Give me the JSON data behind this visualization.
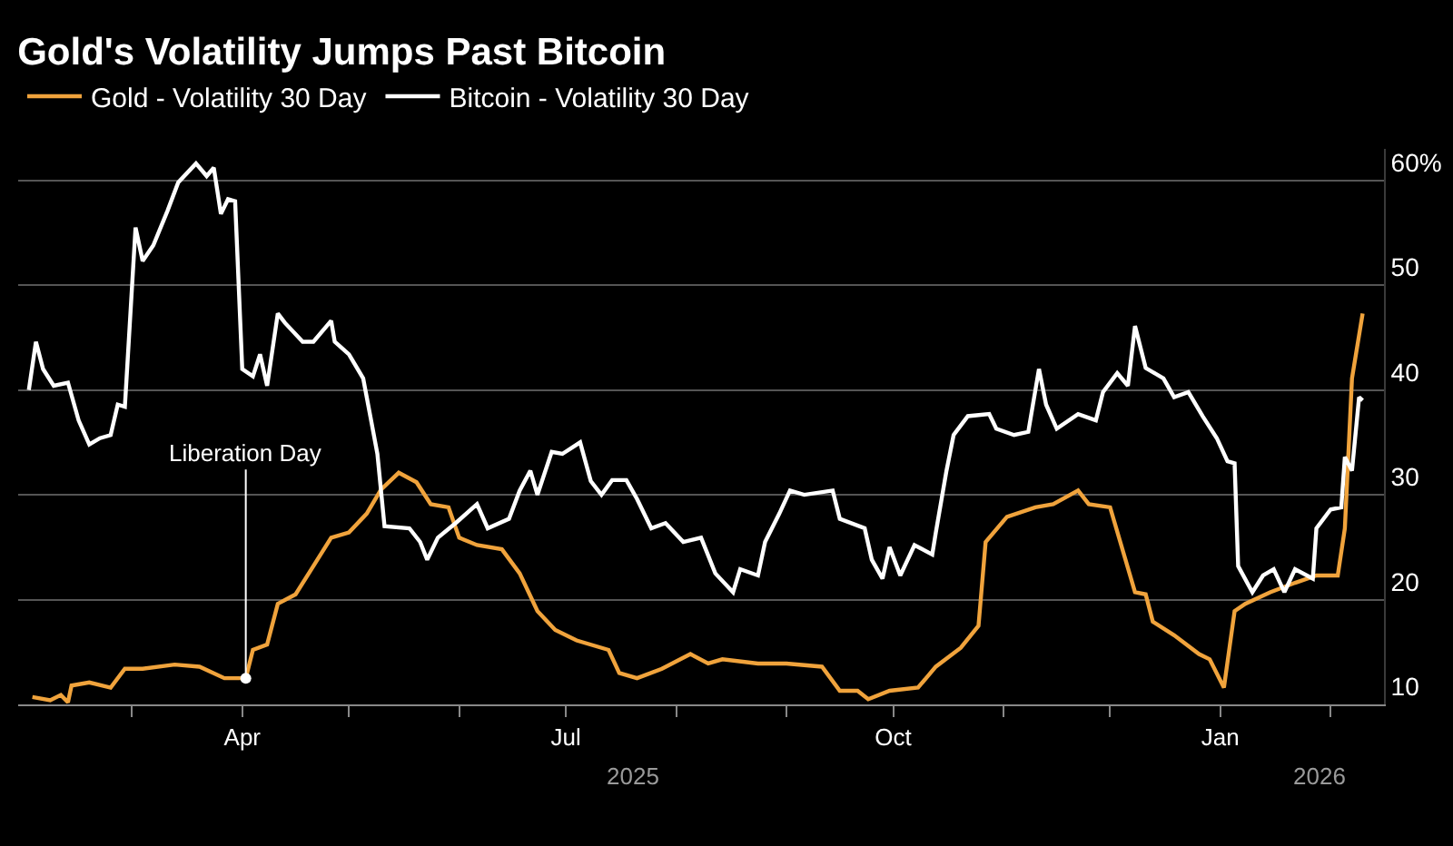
{
  "chart_data": {
    "type": "line",
    "title": "Gold's Volatility Jumps Past Bitcoin",
    "series": [
      {
        "name": "Gold - Volatility 30 Day",
        "color": "#f0a33c",
        "x": [
          "2025-02-01",
          "2025-02-06",
          "2025-02-09",
          "2025-02-11",
          "2025-02-12",
          "2025-02-17",
          "2025-02-23",
          "2025-02-27",
          "2025-03-04",
          "2025-03-13",
          "2025-03-20",
          "2025-03-27",
          "2025-04-02",
          "2025-04-04",
          "2025-04-08",
          "2025-04-11",
          "2025-04-16",
          "2025-04-21",
          "2025-04-26",
          "2025-05-01",
          "2025-05-06",
          "2025-05-10",
          "2025-05-15",
          "2025-05-20",
          "2025-05-24",
          "2025-05-29",
          "2025-06-01",
          "2025-06-06",
          "2025-06-13",
          "2025-06-18",
          "2025-06-23",
          "2025-06-28",
          "2025-07-04",
          "2025-07-13",
          "2025-07-16",
          "2025-07-21",
          "2025-07-28",
          "2025-08-05",
          "2025-08-10",
          "2025-08-14",
          "2025-08-24",
          "2025-09-01",
          "2025-09-11",
          "2025-09-16",
          "2025-09-21",
          "2025-09-24",
          "2025-09-30",
          "2025-10-08",
          "2025-10-13",
          "2025-10-20",
          "2025-10-25",
          "2025-10-27",
          "2025-11-02",
          "2025-11-10",
          "2025-11-15",
          "2025-11-22",
          "2025-11-25",
          "2025-12-01",
          "2025-12-08",
          "2025-12-11",
          "2025-12-13",
          "2025-12-19",
          "2025-12-26",
          "2025-12-29",
          "2026-01-02",
          "2026-01-05",
          "2026-01-08",
          "2026-01-15",
          "2026-01-22",
          "2026-01-28",
          "2026-02-03",
          "2026-02-05",
          "2026-02-07",
          "2026-02-10"
        ],
        "values": [
          10.7,
          10.4,
          10.9,
          10.2,
          11.8,
          12.1,
          11.6,
          13.4,
          13.4,
          13.8,
          13.6,
          12.5,
          12.5,
          15.2,
          15.7,
          19.6,
          20.5,
          23.2,
          25.9,
          26.4,
          28.2,
          30.5,
          32.1,
          31.2,
          29.1,
          28.8,
          25.9,
          25.2,
          24.8,
          22.5,
          18.9,
          17.1,
          16.1,
          15.2,
          13.0,
          12.5,
          13.4,
          14.8,
          13.9,
          14.3,
          13.9,
          13.9,
          13.6,
          11.3,
          11.3,
          10.5,
          11.3,
          11.6,
          13.6,
          15.4,
          17.5,
          25.5,
          27.9,
          28.8,
          29.1,
          30.4,
          29.1,
          28.8,
          20.7,
          20.5,
          17.9,
          16.6,
          14.8,
          14.3,
          11.6,
          18.9,
          19.6,
          20.7,
          21.6,
          22.3,
          22.3,
          26.8,
          41.1,
          47.3
        ]
      },
      {
        "name": "Bitcoin - Volatility 30 Day",
        "color": "#ffffff",
        "x": [
          "2025-01-31",
          "2025-02-02",
          "2025-02-04",
          "2025-02-07",
          "2025-02-11",
          "2025-02-14",
          "2025-02-17",
          "2025-02-20",
          "2025-02-23",
          "2025-02-25",
          "2025-02-27",
          "2025-03-02",
          "2025-03-04",
          "2025-03-07",
          "2025-03-11",
          "2025-03-14",
          "2025-03-19",
          "2025-03-22",
          "2025-03-24",
          "2025-03-26",
          "2025-03-28",
          "2025-03-30",
          "2025-04-01",
          "2025-04-04",
          "2025-04-06",
          "2025-04-08",
          "2025-04-11",
          "2025-04-13",
          "2025-04-18",
          "2025-04-21",
          "2025-04-26",
          "2025-04-27",
          "2025-05-01",
          "2025-05-05",
          "2025-05-07",
          "2025-05-09",
          "2025-05-11",
          "2025-05-18",
          "2025-05-21",
          "2025-05-23",
          "2025-05-26",
          "2025-05-31",
          "2025-06-06",
          "2025-06-09",
          "2025-06-15",
          "2025-06-18",
          "2025-06-21",
          "2025-06-23",
          "2025-06-27",
          "2025-06-30",
          "2025-07-05",
          "2025-07-08",
          "2025-07-11",
          "2025-07-14",
          "2025-07-18",
          "2025-07-21",
          "2025-07-25",
          "2025-07-29",
          "2025-08-03",
          "2025-08-08",
          "2025-08-12",
          "2025-08-17",
          "2025-08-19",
          "2025-08-24",
          "2025-08-26",
          "2025-08-30",
          "2025-09-02",
          "2025-09-06",
          "2025-09-14",
          "2025-09-16",
          "2025-09-23",
          "2025-09-25",
          "2025-09-28",
          "2025-09-30",
          "2025-10-03",
          "2025-10-07",
          "2025-10-12",
          "2025-10-13",
          "2025-10-16",
          "2025-10-18",
          "2025-10-22",
          "2025-10-28",
          "2025-10-30",
          "2025-11-04",
          "2025-11-08",
          "2025-11-11",
          "2025-11-13",
          "2025-11-16",
          "2025-11-22",
          "2025-11-27",
          "2025-11-29",
          "2025-12-03",
          "2025-12-06",
          "2025-12-08",
          "2025-12-11",
          "2025-12-16",
          "2025-12-19",
          "2025-12-23",
          "2025-12-27",
          "2025-12-31",
          "2026-01-03",
          "2026-01-05",
          "2026-01-06",
          "2026-01-10",
          "2026-01-13",
          "2026-01-16",
          "2026-01-19",
          "2026-01-22",
          "2026-01-27",
          "2026-01-28",
          "2026-02-01",
          "2026-02-04",
          "2026-02-05",
          "2026-02-07",
          "2026-02-09",
          "2026-02-10"
        ],
        "values": [
          40.0,
          44.6,
          42.0,
          40.4,
          40.7,
          37.1,
          34.8,
          35.4,
          35.7,
          38.6,
          38.4,
          55.5,
          52.3,
          53.8,
          57.1,
          59.8,
          61.6,
          60.4,
          61.2,
          56.8,
          58.2,
          58.0,
          42.0,
          41.3,
          43.4,
          40.4,
          47.3,
          46.4,
          44.6,
          44.6,
          46.6,
          44.6,
          43.4,
          41.1,
          37.5,
          33.9,
          27.0,
          26.8,
          25.5,
          23.8,
          25.9,
          27.3,
          29.1,
          26.8,
          27.7,
          30.4,
          32.3,
          30.0,
          34.1,
          33.9,
          35.0,
          31.3,
          30.0,
          31.4,
          31.4,
          29.6,
          26.8,
          27.3,
          25.5,
          25.9,
          22.5,
          20.7,
          22.9,
          22.3,
          25.5,
          28.2,
          30.4,
          30.0,
          30.4,
          27.7,
          26.8,
          23.8,
          22.0,
          25.0,
          22.3,
          25.2,
          24.3,
          26.4,
          32.3,
          35.7,
          37.5,
          37.7,
          36.3,
          35.7,
          36.0,
          42.0,
          38.6,
          36.3,
          37.7,
          37.1,
          39.8,
          41.6,
          40.4,
          46.1,
          42.1,
          41.1,
          39.3,
          39.8,
          37.5,
          35.4,
          33.2,
          33.0,
          23.2,
          20.7,
          22.3,
          22.9,
          20.7,
          22.9,
          22.0,
          26.8,
          28.6,
          28.8,
          33.6,
          32.3,
          39.3,
          39.0
        ]
      }
    ],
    "xlim": [
      "2025-01-28",
      "2026-02-16"
    ],
    "xticks": [
      {
        "value": "2025-03-01",
        "label": null
      },
      {
        "value": "2025-04-01",
        "label": "Apr"
      },
      {
        "value": "2025-05-01",
        "label": null
      },
      {
        "value": "2025-06-01",
        "label": null
      },
      {
        "value": "2025-07-01",
        "label": "Jul"
      },
      {
        "value": "2025-08-01",
        "label": null
      },
      {
        "value": "2025-09-01",
        "label": null
      },
      {
        "value": "2025-10-01",
        "label": "Oct"
      },
      {
        "value": "2025-11-01",
        "label": null
      },
      {
        "value": "2025-12-01",
        "label": null
      },
      {
        "value": "2026-01-01",
        "label": "Jan"
      },
      {
        "value": "2026-02-01",
        "label": null
      }
    ],
    "ylim": [
      10,
      63
    ],
    "yticks": [
      10,
      20,
      30,
      40,
      50,
      {
        "value": 60,
        "label": "60%"
      }
    ],
    "grid": "y",
    "legend": "top left",
    "line_style": "solid",
    "marker": "none",
    "annotations": [
      {
        "text": "Liberation Day",
        "x": "2025-04-02",
        "y": 12.5
      },
      "2025",
      "2026"
    ]
  }
}
